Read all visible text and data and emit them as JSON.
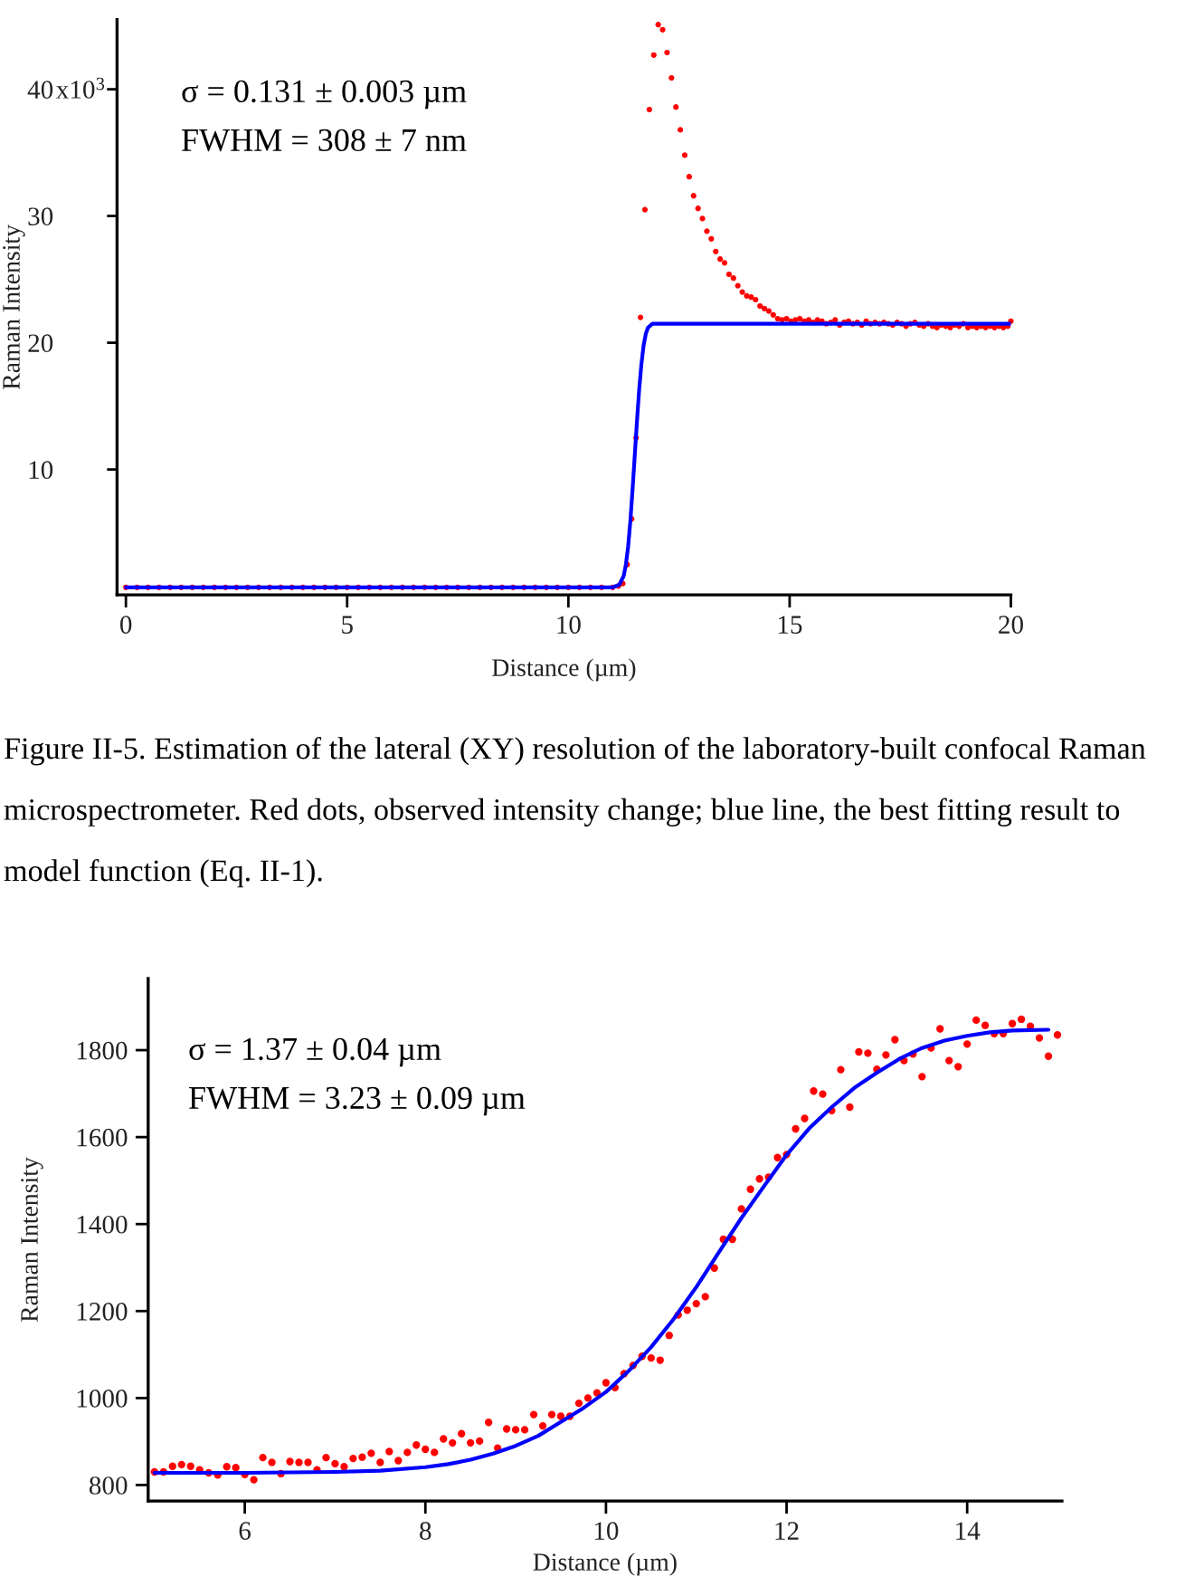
{
  "chart_data": [
    {
      "type": "scatter",
      "xlabel": "Distance (µm)",
      "ylabel": "Raman Intensity",
      "xlim": [
        -0.2,
        20
      ],
      "ylim": [
        0.1,
        45.5
      ],
      "xticks": [
        0,
        5,
        10,
        15,
        20
      ],
      "yticks": [
        10,
        20,
        30,
        40
      ],
      "series": [
        {
          "color": "#ff0000",
          "marker": "circle",
          "x": [
            0,
            0.25,
            0.5,
            0.75,
            1,
            1.25,
            1.5,
            1.75,
            2,
            2.25,
            2.5,
            2.75,
            3,
            3.25,
            3.5,
            3.75,
            4,
            4.25,
            4.5,
            4.75,
            5,
            5.25,
            5.5,
            5.75,
            6,
            6.25,
            6.5,
            6.75,
            7,
            7.25,
            7.5,
            7.75,
            8,
            8.25,
            8.5,
            8.75,
            9,
            9.25,
            9.5,
            9.75,
            10,
            10.25,
            10.5,
            10.75,
            11,
            11.13,
            11.23,
            11.33,
            11.43,
            11.53,
            11.63,
            11.73,
            11.83,
            11.93,
            12.03,
            12.13,
            12.23,
            12.33,
            12.43,
            12.53,
            12.63,
            12.73,
            12.83,
            12.93,
            13.03,
            13.13,
            13.23,
            13.33,
            13.43,
            13.53,
            13.63,
            13.73,
            13.83,
            13.93,
            14.03,
            14.13,
            14.23,
            14.33,
            14.43,
            14.53,
            14.63,
            14.73,
            14.83,
            14.93,
            15.03,
            15.13,
            15.23,
            15.33,
            15.43,
            15.53,
            15.63,
            15.73,
            15.83,
            15.93,
            16.03,
            16.13,
            16.23,
            16.33,
            16.43,
            16.53,
            16.63,
            16.73,
            16.83,
            16.93,
            17.03,
            17.13,
            17.23,
            17.33,
            17.43,
            17.53,
            17.63,
            17.73,
            17.83,
            17.93,
            18.03,
            18.13,
            18.23,
            18.33,
            18.43,
            18.53,
            18.63,
            18.73,
            18.83,
            18.93,
            19.03,
            19.13,
            19.23,
            19.33,
            19.43,
            19.53,
            19.63,
            19.73,
            19.83,
            19.93,
            20
          ],
          "values": [
            0.7,
            0.7,
            0.7,
            0.7,
            0.7,
            0.7,
            0.7,
            0.7,
            0.7,
            0.7,
            0.7,
            0.7,
            0.7,
            0.7,
            0.7,
            0.7,
            0.7,
            0.7,
            0.7,
            0.7,
            0.7,
            0.7,
            0.7,
            0.7,
            0.7,
            0.7,
            0.7,
            0.7,
            0.7,
            0.7,
            0.7,
            0.7,
            0.7,
            0.7,
            0.7,
            0.7,
            0.7,
            0.7,
            0.7,
            0.7,
            0.7,
            0.7,
            0.7,
            0.7,
            0.7,
            0.8,
            1.0,
            2.5,
            6.1,
            12.5,
            22.0,
            30.5,
            38.4,
            42.7,
            45.1,
            44.7,
            42.9,
            40.9,
            38.6,
            36.8,
            34.8,
            33.1,
            31.6,
            30.6,
            29.8,
            28.8,
            28.2,
            27.2,
            26.6,
            26.3,
            25.4,
            25.1,
            24.5,
            24.0,
            23.7,
            23.6,
            23.4,
            22.9,
            22.7,
            22.5,
            22.2,
            21.9,
            21.8,
            21.9,
            21.7,
            21.8,
            21.9,
            21.7,
            21.8,
            21.6,
            21.8,
            21.7,
            21.5,
            21.6,
            21.8,
            21.4,
            21.6,
            21.7,
            21.5,
            21.6,
            21.4,
            21.7,
            21.5,
            21.6,
            21.5,
            21.6,
            21.5,
            21.4,
            21.6,
            21.5,
            21.3,
            21.5,
            21.6,
            21.4,
            21.3,
            21.5,
            21.3,
            21.2,
            21.4,
            21.3,
            21.2,
            21.4,
            21.3,
            21.5,
            21.2,
            21.3,
            21.2,
            21.3,
            21.2,
            21.3,
            21.2,
            21.3,
            21.2,
            21.3,
            21.7
          ]
        },
        {
          "type": "line",
          "color": "#0000ff",
          "marker": "none",
          "x": [
            0,
            11.0,
            11.15,
            11.25,
            11.3,
            11.35,
            11.4,
            11.45,
            11.5,
            11.55,
            11.6,
            11.65,
            11.7,
            11.75,
            11.8,
            11.9,
            20
          ],
          "values": [
            0.7,
            0.7,
            0.9,
            1.6,
            2.5,
            3.9,
            5.9,
            8.4,
            11.1,
            13.8,
            16.3,
            18.3,
            19.8,
            20.7,
            21.2,
            21.5,
            21.5
          ]
        }
      ],
      "annotations": [
        "σ = 0.131 ± 0.003 µm",
        "FWHM = 308 ± 7 nm",
        "x10$^{3}$",
        "Figure II-5. Estimation of the lateral (XY) resolution of the laboratory-built confocal Raman microspectrometer. Red dots, observed intensity change; blue line, the best fitting result to model function (Eq. II-1)."
      ]
    },
    {
      "type": "scatter",
      "xlabel": "Distance (µm)",
      "ylabel": "Raman Intensity",
      "xlim": [
        4.93,
        15.05
      ],
      "ylim": [
        763,
        1965
      ],
      "xticks": [
        6,
        8,
        10,
        12,
        14
      ],
      "yticks": [
        800,
        1000,
        1200,
        1400,
        1600,
        1800
      ],
      "series": [
        {
          "color": "#ff0000",
          "marker": "circle",
          "x": [
            5.0,
            5.1,
            5.2,
            5.3,
            5.4,
            5.5,
            5.6,
            5.7,
            5.8,
            5.9,
            6.0,
            6.1,
            6.2,
            6.3,
            6.4,
            6.5,
            6.6,
            6.7,
            6.8,
            6.9,
            7.0,
            7.1,
            7.2,
            7.3,
            7.4,
            7.5,
            7.6,
            7.7,
            7.8,
            7.9,
            8.0,
            8.1,
            8.2,
            8.3,
            8.4,
            8.5,
            8.6,
            8.7,
            8.8,
            8.9,
            9.0,
            9.1,
            9.2,
            9.3,
            9.4,
            9.5,
            9.6,
            9.7,
            9.8,
            9.9,
            10.0,
            10.1,
            10.2,
            10.3,
            10.4,
            10.5,
            10.6,
            10.7,
            10.8,
            10.9,
            11.0,
            11.1,
            11.2,
            11.3,
            11.4,
            11.5,
            11.6,
            11.7,
            11.8,
            11.9,
            12.0,
            12.1,
            12.2,
            12.3,
            12.4,
            12.5,
            12.6,
            12.7,
            12.8,
            12.9,
            13.0,
            13.1,
            13.2,
            13.3,
            13.4,
            13.5,
            13.6,
            13.7,
            13.8,
            13.9,
            14.0,
            14.1,
            14.2,
            14.3,
            14.4,
            14.5,
            14.6,
            14.7,
            14.8,
            14.9,
            15.0
          ],
          "values": [
            830,
            830,
            843,
            847,
            843,
            835,
            828,
            823,
            842,
            840,
            824,
            812,
            863,
            852,
            826,
            854,
            852,
            852,
            835,
            863,
            849,
            842,
            861,
            864,
            873,
            852,
            877,
            856,
            875,
            892,
            882,
            875,
            906,
            897,
            918,
            897,
            901,
            944,
            885,
            929,
            927,
            927,
            962,
            936,
            962,
            958,
            958,
            988,
            1000,
            1012,
            1035,
            1024,
            1056,
            1075,
            1096,
            1092,
            1087,
            1144,
            1191,
            1202,
            1217,
            1233,
            1299,
            1365,
            1365,
            1435,
            1480,
            1504,
            1508,
            1553,
            1560,
            1619,
            1643,
            1706,
            1699,
            1661,
            1755,
            1669,
            1796,
            1793,
            1756,
            1789,
            1824,
            1776,
            1791,
            1739,
            1805,
            1849,
            1776,
            1762,
            1814,
            1869,
            1857,
            1838,
            1838,
            1861,
            1871,
            1855,
            1828,
            1786,
            1835
          ]
        },
        {
          "type": "line",
          "color": "#0000ff",
          "marker": "none",
          "x": [
            5.0,
            6.0,
            7.0,
            7.5,
            8.0,
            8.25,
            8.5,
            8.75,
            9.0,
            9.25,
            9.5,
            9.75,
            10.0,
            10.25,
            10.5,
            10.75,
            11.0,
            11.25,
            11.5,
            11.75,
            12.0,
            12.25,
            12.5,
            12.75,
            13.0,
            13.25,
            13.5,
            13.75,
            14.0,
            14.25,
            14.5,
            14.9
          ],
          "values": [
            828,
            828,
            830,
            833,
            841,
            848,
            858,
            872,
            890,
            913,
            945,
            977,
            1014,
            1062,
            1117,
            1182,
            1255,
            1335,
            1414,
            1487,
            1559,
            1620,
            1669,
            1713,
            1748,
            1780,
            1805,
            1822,
            1833,
            1841,
            1845,
            1847
          ]
        }
      ],
      "annotations": [
        "σ = 1.37 ± 0.04 µm",
        "FWHM = 3.23 ± 0.09 µm"
      ]
    }
  ]
}
